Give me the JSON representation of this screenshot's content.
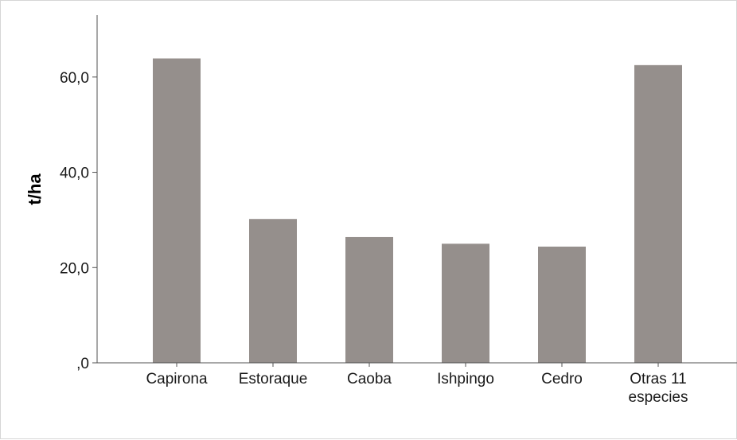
{
  "chart_data": {
    "type": "bar",
    "categories": [
      [
        "Capirona"
      ],
      [
        "Estoraque"
      ],
      [
        "Caoba"
      ],
      [
        "Ishpingo"
      ],
      [
        "Cedro"
      ],
      [
        "Otras 11",
        "especies"
      ]
    ],
    "values": [
      63.9,
      30.2,
      26.4,
      25.0,
      24.4,
      62.5
    ],
    "ylabel": "t/ha",
    "xlabel": "",
    "title": "",
    "ylim": [
      0,
      73
    ],
    "yticks": [
      0,
      20,
      40,
      60
    ],
    "ytick_labels": [
      ",0",
      "20,0",
      "40,0",
      "60,0"
    ],
    "grid": false,
    "colors": {
      "bar": "#958f8c",
      "axis": "#505050",
      "frame": "#d6d6d6"
    }
  }
}
